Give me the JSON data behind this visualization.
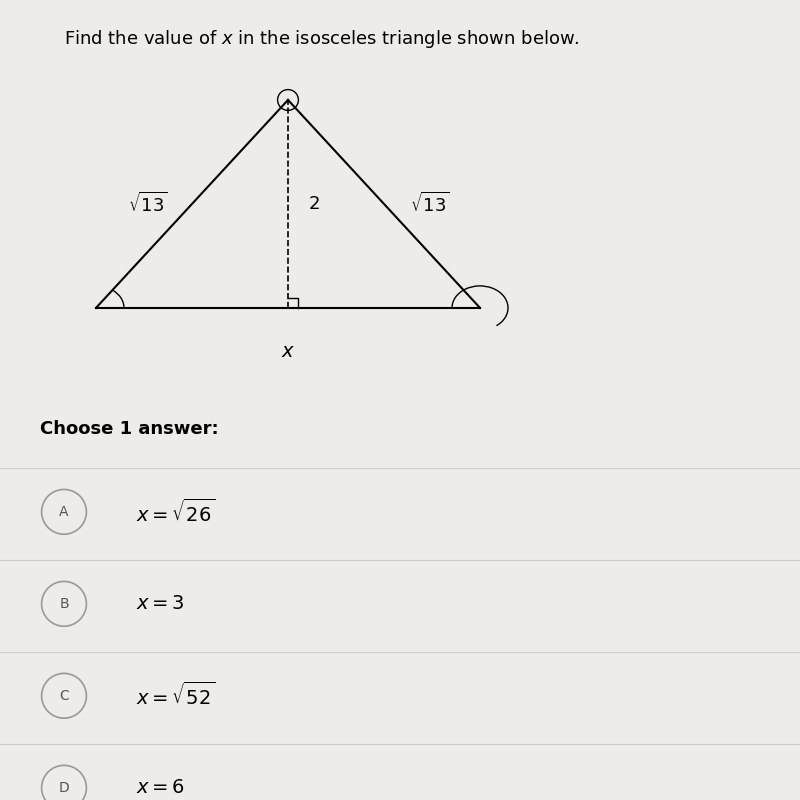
{
  "title": "Find the value of $x$ in the isosceles triangle shown below.",
  "bg_color": "#eeece9",
  "labels": {
    "left_side": "$\\sqrt{13}$",
    "right_side": "$\\sqrt{13}$",
    "altitude": "2",
    "base": "$x$"
  },
  "choices": [
    {
      "letter": "A",
      "text": "$x = \\sqrt{26}$"
    },
    {
      "letter": "B",
      "text": "$x = 3$"
    },
    {
      "letter": "C",
      "text": "$x = \\sqrt{52}$"
    },
    {
      "letter": "D",
      "text": "$x = 6$"
    }
  ],
  "choose_text": "Choose 1 answer:",
  "title_fontsize": 13,
  "label_fontsize": 13,
  "choice_fontsize": 14,
  "choose_fontsize": 13
}
